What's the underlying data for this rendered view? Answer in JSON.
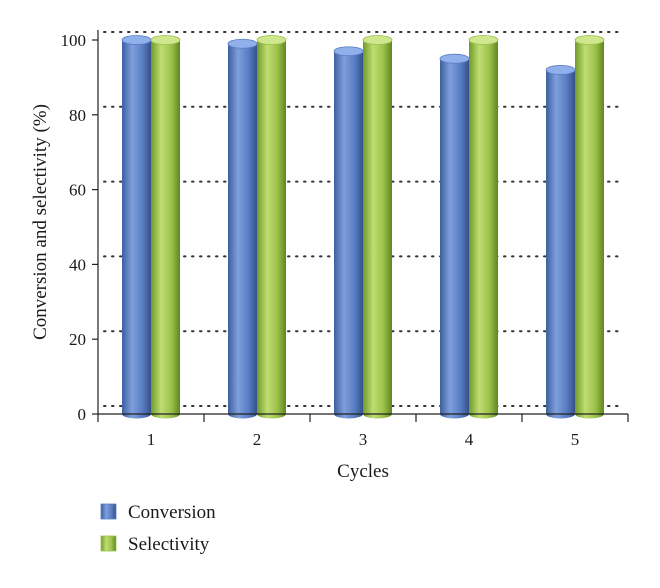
{
  "chart_data": {
    "type": "bar",
    "categories": [
      "1",
      "2",
      "3",
      "4",
      "5"
    ],
    "series": [
      {
        "name": "Conversion",
        "values": [
          100,
          99,
          97,
          95,
          92
        ],
        "color": "#5a7ec4"
      },
      {
        "name": "Selectivity",
        "values": [
          100,
          100,
          100,
          100,
          100
        ],
        "color": "#9cc24a"
      }
    ],
    "xlabel": "Cycles",
    "ylabel": "Conversion and selectivity (%)",
    "ylim": [
      0,
      100
    ],
    "yticks": [
      0,
      20,
      40,
      60,
      80,
      100
    ],
    "grid": "horizontal dotted",
    "legend_position": "bottom-left"
  }
}
